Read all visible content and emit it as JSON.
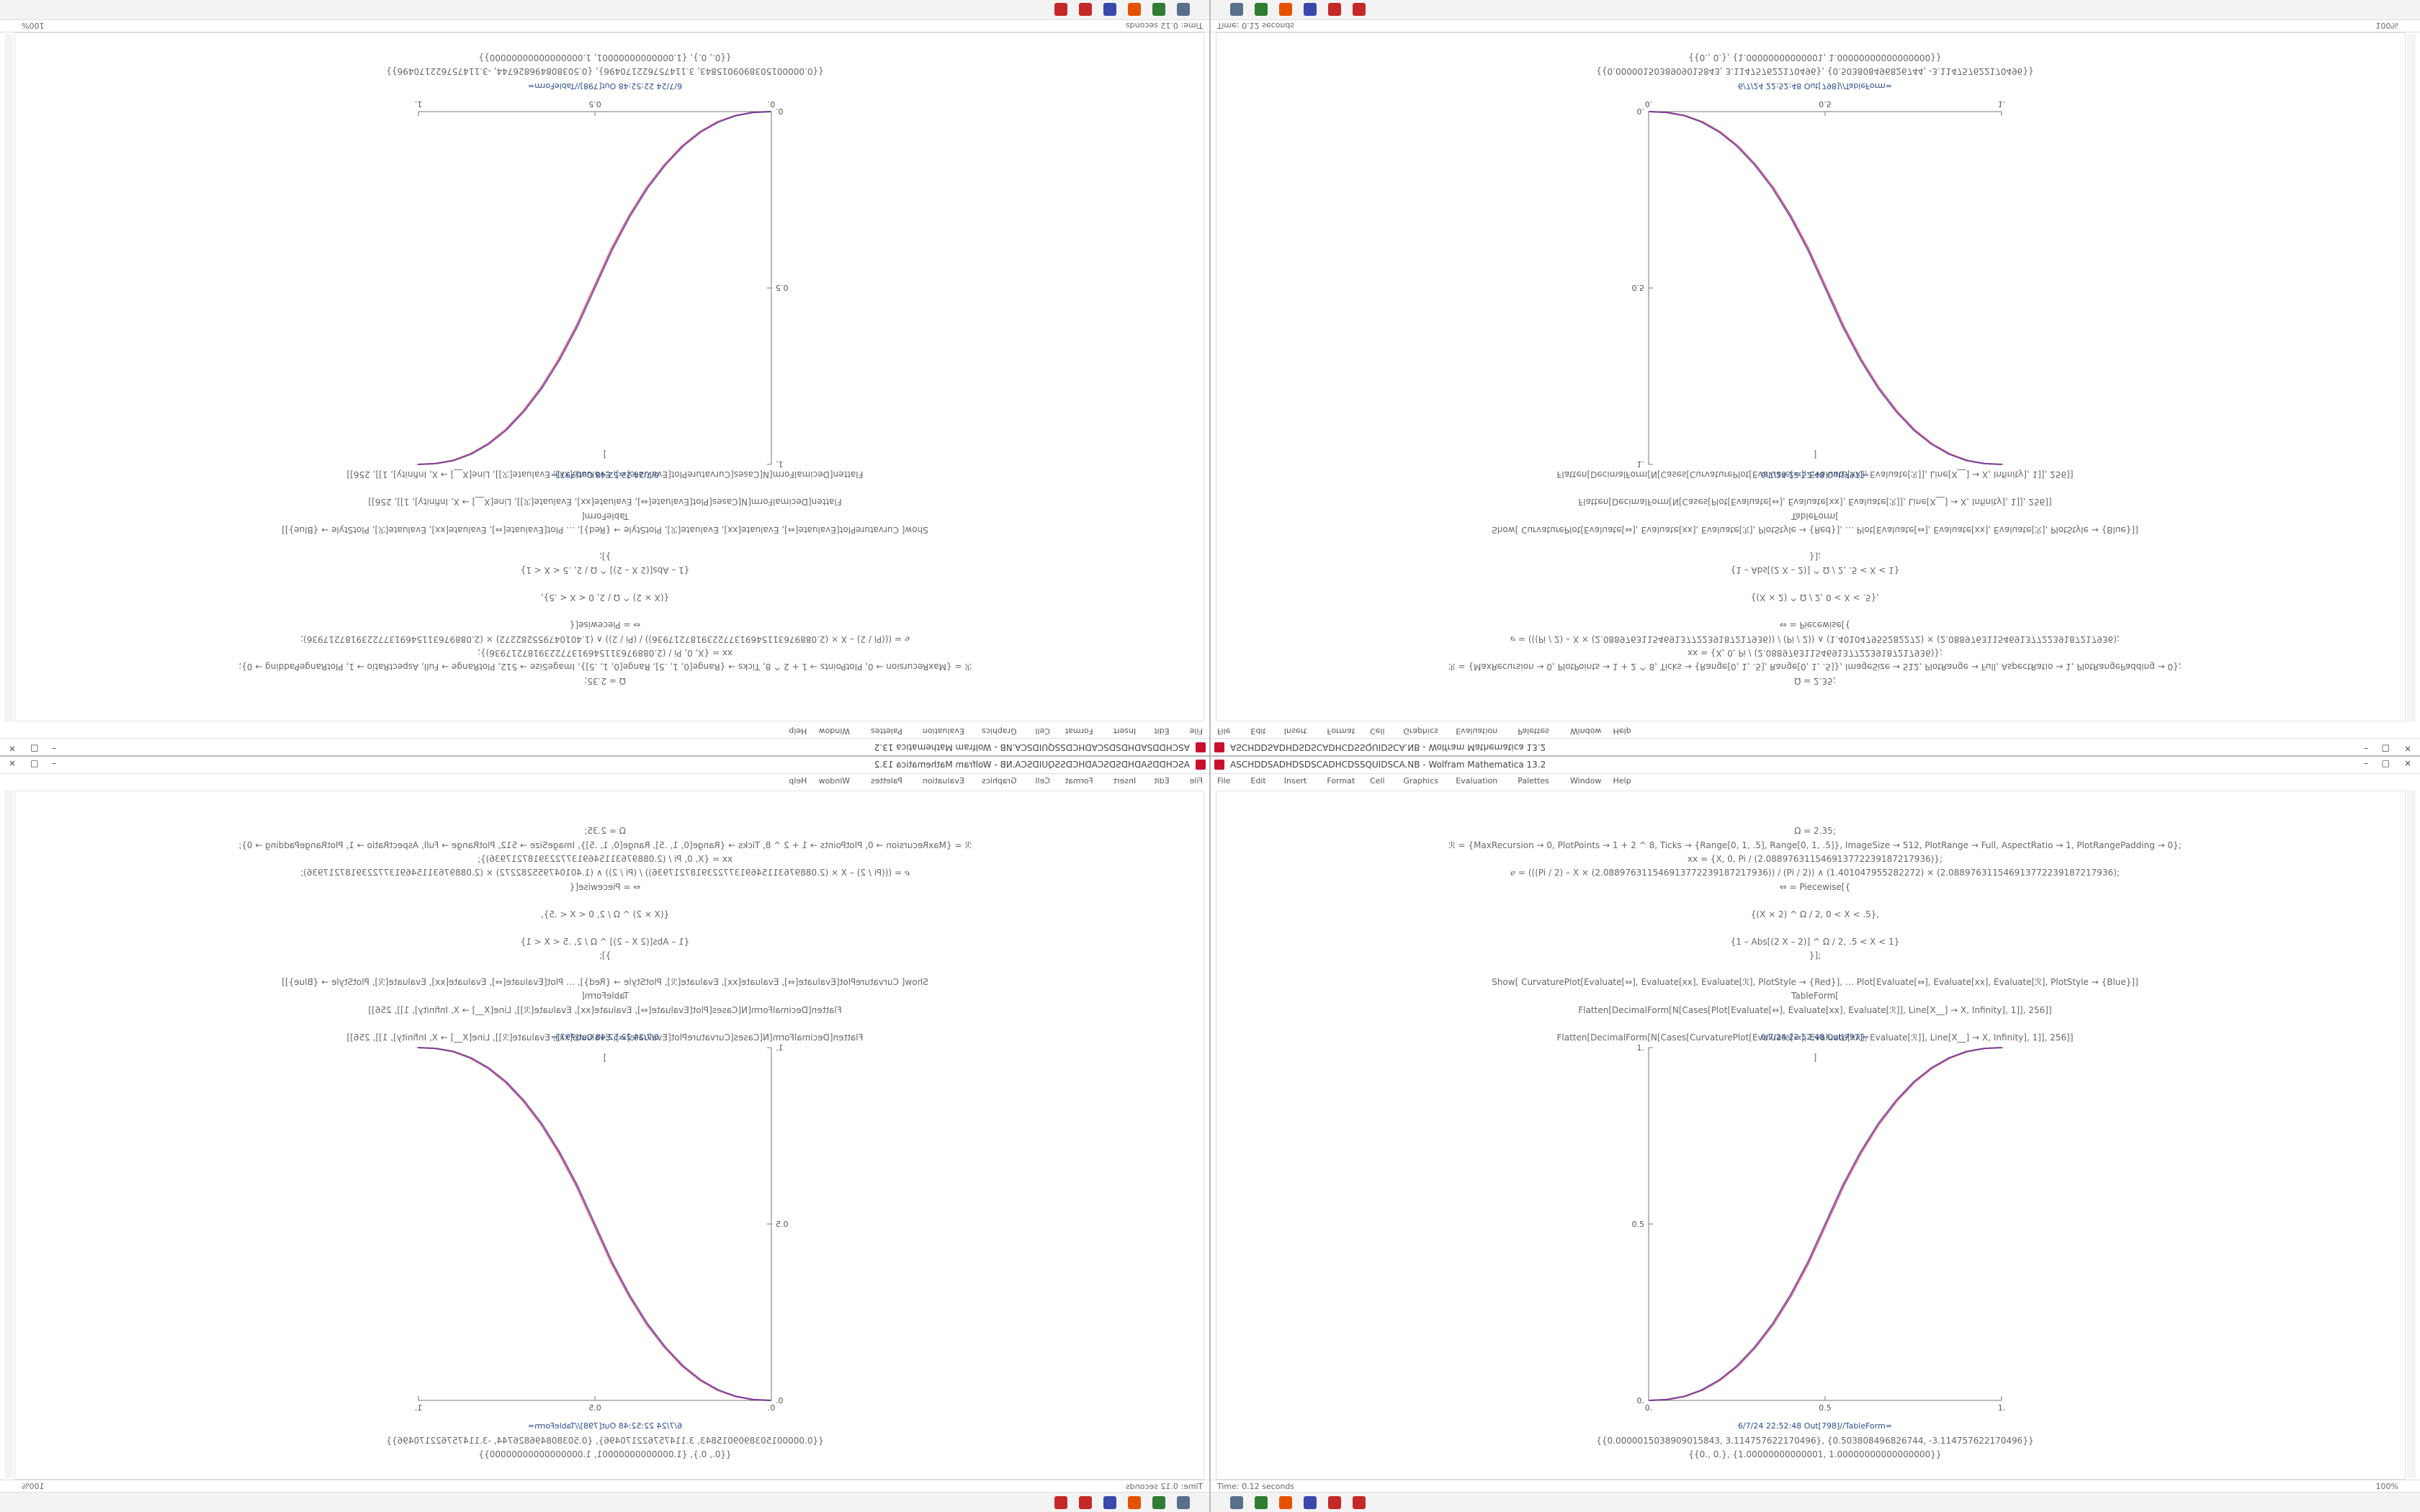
{
  "window": {
    "title": "ASCHDDSADHDSDSCADHCDSSQUIDSCA.NB - Wolfram Mathematica 13.2",
    "menu": [
      "File",
      "Edit",
      "Insert",
      "Format",
      "Cell",
      "Graphics",
      "Evaluation",
      "Palettes",
      "Window",
      "Help"
    ]
  },
  "notebook": {
    "input_lines": [
      "Ω = 2.35;",
      "ℛ = {MaxRecursion → 0, PlotPoints → 1 + 2 ^ 8, Ticks → {Range[0, 1, .5], Range[0, 1, .5]}, ImageSize → 512, PlotRange → Full, AspectRatio → 1, PlotRangePadding → 0};",
      "xx = {X, 0, Pi / (2.088976311546913772239187217936)};",
      "ℯ = (((Pi / 2) – X × (2.088976311546913772239187217936)) / (Pi / 2)) ∧ (1.401047955282272) × (2.088976311546913772239187217936);",
      "⇔ = Piecewise[{",
      "{(X × 2) ^ Ω / 2, 0 < X < .5},",
      "{1 – Abs[(2 X – 2)] ^ Ω / 2, .5 < X < 1}",
      "}];",
      "Show[  CurvaturePlot[Evaluate[⇔], Evaluate[xx], Evaluate[ℛ], PlotStyle → {Red}],  …  Plot[Evaluate[⇔], Evaluate[xx], Evaluate[ℛ], PlotStyle → {Blue}]]",
      "TableForm[",
      "Flatten[DecimalForm[N[Cases[Plot[Evaluate[⇔], Evaluate[xx], Evaluate[ℛ]], Line[X__] → X, Infinity], 1]], 256]]",
      "Flatten[DecimalForm[N[Cases[CurvaturePlot[Evaluate[⇔], Evaluate[xx], Evaluate[ℛ]], Line[X__] → X, Infinity], 1]], 256]]",
      "]"
    ],
    "output_label_1": "6/7/24 22:52:48 Out[797]=",
    "plot": {
      "type": "line",
      "x": [
        0,
        0.05,
        0.1,
        0.15,
        0.2,
        0.25,
        0.3,
        0.35,
        0.4,
        0.45,
        0.5,
        0.55,
        0.6,
        0.65,
        0.7,
        0.75,
        0.8,
        0.85,
        0.9,
        0.95,
        1
      ],
      "series": [
        {
          "color": "#d23c5a",
          "values": [
            0,
            0.0022,
            0.0114,
            0.0295,
            0.058,
            0.098,
            0.151,
            0.216,
            0.296,
            0.39,
            0.5,
            0.61,
            0.704,
            0.784,
            0.849,
            0.902,
            0.942,
            0.9705,
            0.989,
            0.9978,
            1
          ]
        },
        {
          "color": "#5a2ca0",
          "values": [
            0,
            0.0022,
            0.0114,
            0.0295,
            0.058,
            0.098,
            0.151,
            0.216,
            0.296,
            0.39,
            0.5,
            0.61,
            0.704,
            0.784,
            0.849,
            0.902,
            0.942,
            0.9705,
            0.989,
            0.9978,
            1
          ]
        }
      ],
      "xlim": [
        0,
        1
      ],
      "ylim": [
        0,
        1
      ],
      "xticks": [
        {
          "value": 0,
          "label": "0."
        },
        0.5,
        {
          "value": 1,
          "label": "1."
        }
      ],
      "yticks": [
        {
          "value": 0,
          "label": "0."
        },
        0.5,
        {
          "value": 1,
          "label": "1."
        }
      ]
    },
    "output_label_2": "6/7/24 22:52:48 Out[798]//TableForm=",
    "output_lines": [
      "{{0.0000015038909015843, 3.114757622170496}, {0.503808496826744, -3.114757622170496}}",
      "{{0., 0.}, {1.00000000000001, 1.00000000000000000}}"
    ]
  },
  "status": {
    "time": "Time: 0.12 seconds",
    "zoom": "100%"
  }
}
